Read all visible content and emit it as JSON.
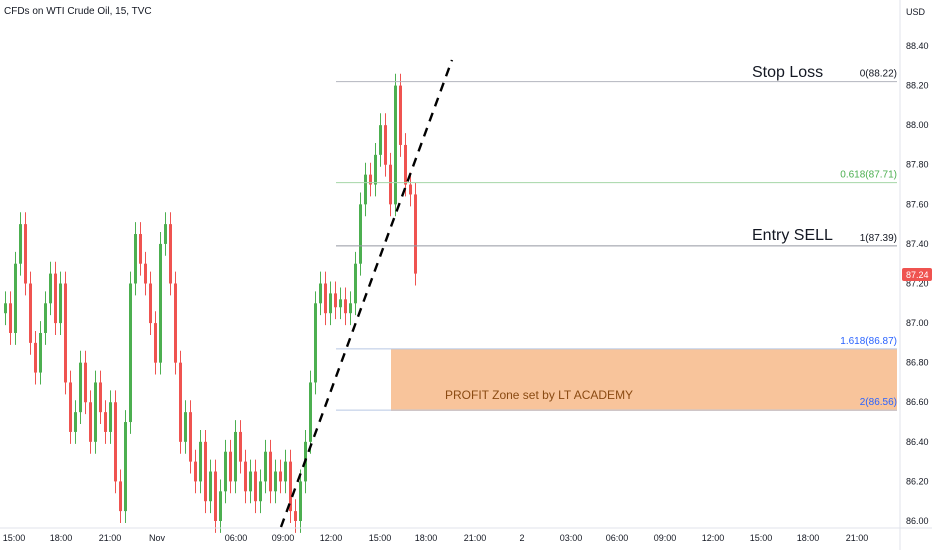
{
  "chart": {
    "title": "CFDs on WTI Crude Oil, 15, TVC",
    "currency": "USD",
    "price_axis_ticks": [
      "88.40",
      "88.20",
      "88.00",
      "87.80",
      "87.60",
      "87.40",
      "87.20",
      "87.00",
      "86.80",
      "86.60",
      "86.40",
      "86.20",
      "86.00"
    ],
    "time_axis_ticks": [
      "15:00",
      "18:00",
      "21:00",
      "Nov",
      "06:00",
      "09:00",
      "12:00",
      "15:00",
      "18:00",
      "21:00",
      "2",
      "03:00",
      "06:00",
      "09:00",
      "12:00",
      "15:00",
      "18:00",
      "21:00"
    ],
    "current_price": "87.24",
    "annotations": {
      "stop_loss": "Stop Loss",
      "entry_sell": "Entry SELL",
      "profit_zone": "PROFIT Zone set by LT ACADEMY"
    },
    "fib_levels": [
      {
        "label": "0(88.22)",
        "price": 88.22,
        "color": "#b2b5be",
        "text_color": "#131722"
      },
      {
        "label": "0.618(87.71)",
        "price": 87.71,
        "color": "#a5d6a7",
        "text_color": "#4caf50"
      },
      {
        "label": "1(87.39)",
        "price": 87.39,
        "color": "#9598a1",
        "text_color": "#131722"
      },
      {
        "label": "1.618(86.87)",
        "price": 86.87,
        "color": "#b6c8e3",
        "text_color": "#2962ff"
      },
      {
        "label": "2(86.56)",
        "price": 86.56,
        "color": "#b6c8e3",
        "text_color": "#2962ff"
      }
    ],
    "colors": {
      "up": "#26a69a",
      "up_fill": "#4caf50",
      "down": "#ef5350",
      "zone": "#f8c49b"
    }
  }
}
